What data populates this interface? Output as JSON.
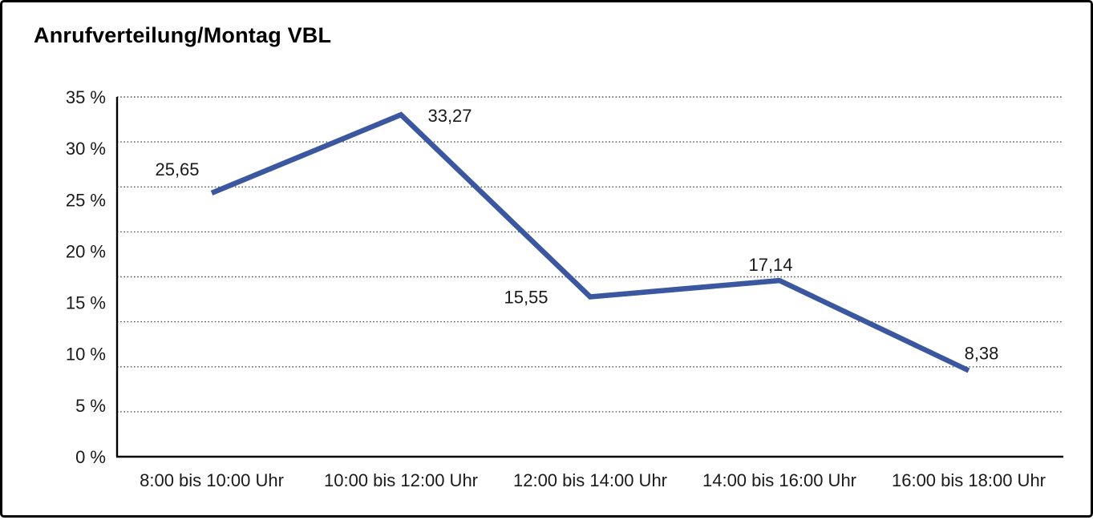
{
  "window": {
    "background_color": "#ffffff",
    "border_color": "#000000"
  },
  "header": {
    "title": "Anrufverteilung/Montag VBL"
  },
  "chart_data": {
    "type": "line",
    "title": "Anrufverteilung/Montag VBL",
    "categories": [
      "8:00 bis 10:00 Uhr",
      "10:00 bis 12:00 Uhr",
      "12:00 bis 14:00 Uhr",
      "14:00 bis 16:00 Uhr",
      "16:00 bis 18:00 Uhr"
    ],
    "values": [
      25.65,
      33.27,
      15.55,
      17.14,
      8.38
    ],
    "point_labels": [
      "25,65",
      "33,27",
      "15,55",
      "17,14",
      "8,38"
    ],
    "y_ticks": [
      "35 %",
      "30 %",
      "25 %",
      "20 %",
      "15 %",
      "10 %",
      "5 %",
      "0 %"
    ],
    "y_tick_values": [
      35,
      30,
      25,
      20,
      15,
      10,
      5,
      0
    ],
    "ylim": [
      0,
      35
    ],
    "xlabel": "",
    "ylabel": "",
    "unit": "%",
    "decimal_separator": ",",
    "legend": "none",
    "grid": "horizontal dotted",
    "line_color": "#3A57A0",
    "grid_color": "#555555",
    "axis_color": "#000000",
    "text_color": "#1a1a1a"
  }
}
